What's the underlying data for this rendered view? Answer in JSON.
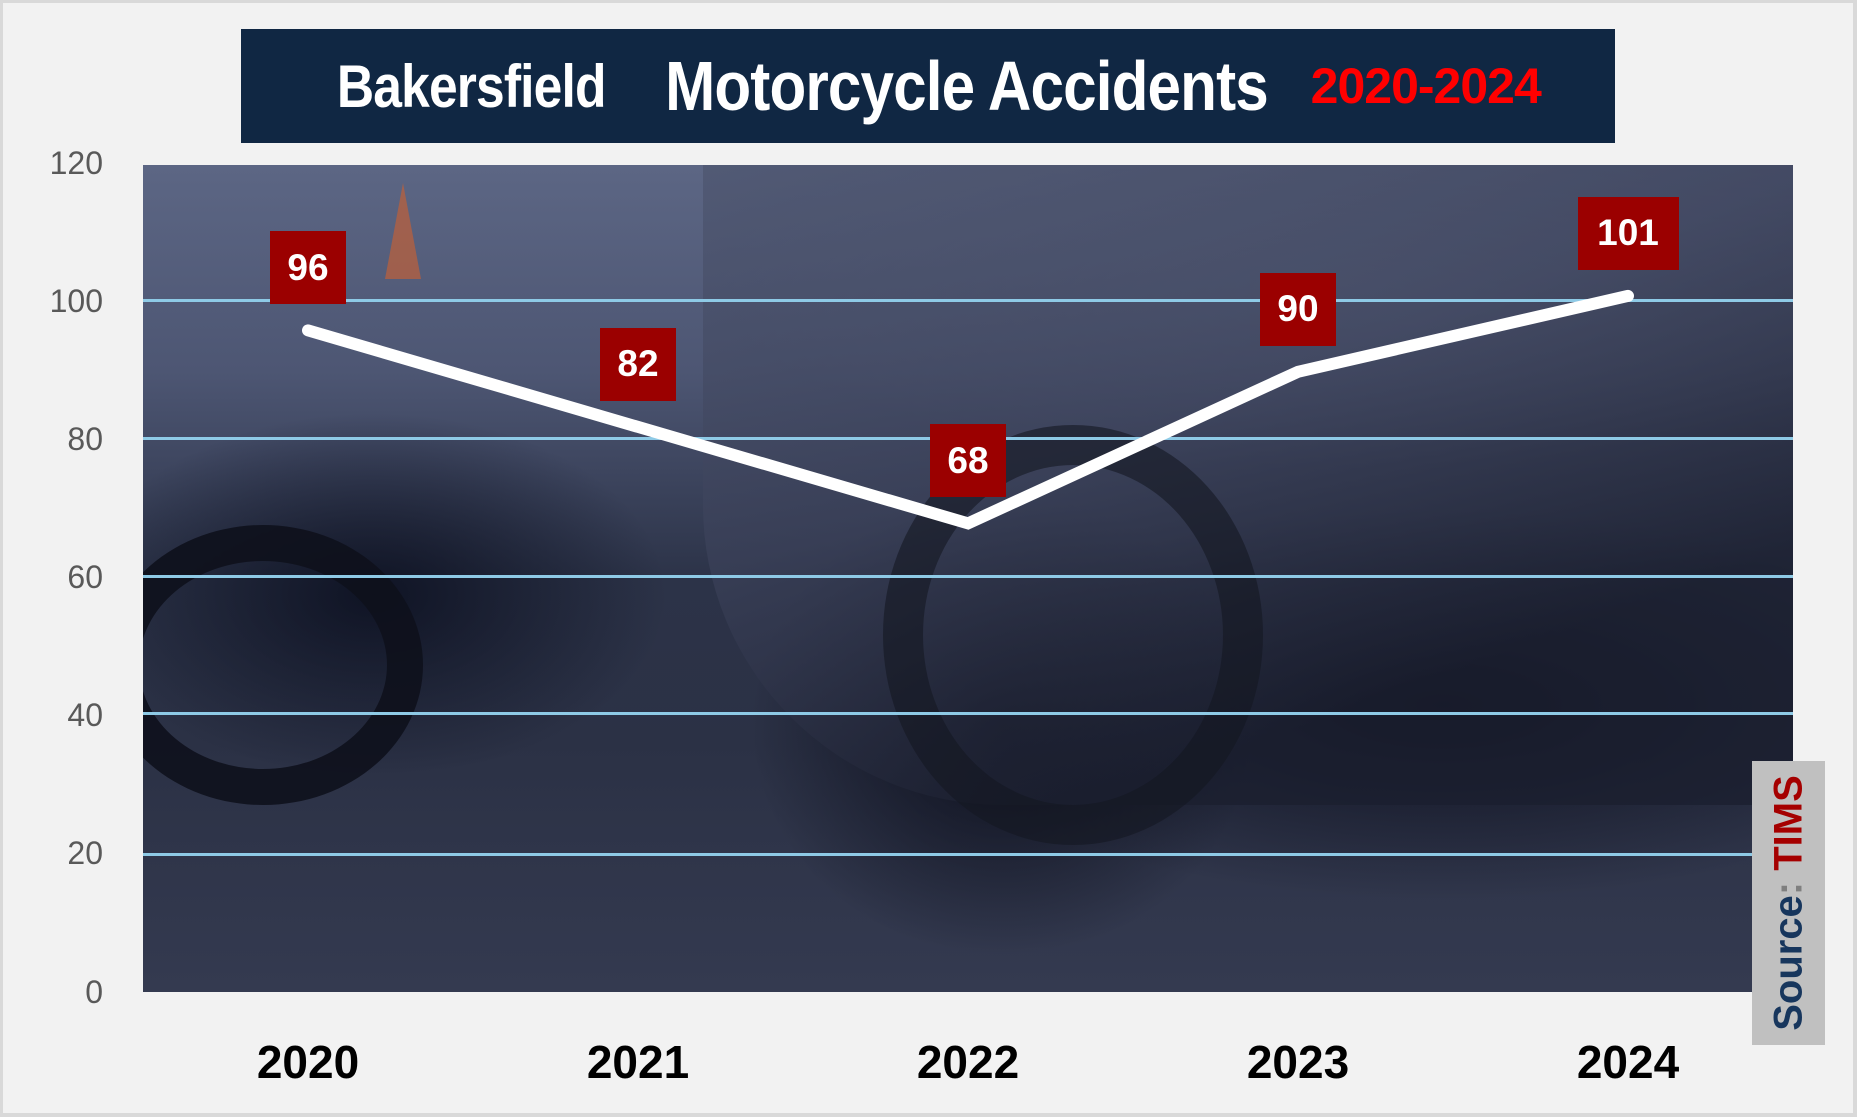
{
  "title": {
    "part1": "Bakersfield",
    "part2": "Motorcycle Accidents",
    "part3": "2020-2024"
  },
  "source": {
    "label": "Source",
    "colon": ": ",
    "name": "TIMS"
  },
  "colors": {
    "title_bg": "#102743",
    "title_text": "#ffffff",
    "title_years": "#ff0000",
    "label_bg": "#9b0000",
    "line": "#ffffff",
    "gridline": "#8ecae6",
    "source_bg": "#c0c0c0"
  },
  "y_axis": {
    "ticks": [
      "120",
      "100",
      "80",
      "60",
      "40",
      "20",
      "0"
    ]
  },
  "x_axis": {
    "ticks": [
      "2020",
      "2021",
      "2022",
      "2023",
      "2024"
    ]
  },
  "labels": [
    "96",
    "82",
    "68",
    "90",
    "101"
  ],
  "chart_data": {
    "type": "line",
    "title": "Bakersfield Motorcycle Accidents 2020-2024",
    "categories": [
      "2020",
      "2021",
      "2022",
      "2023",
      "2024"
    ],
    "values": [
      96,
      82,
      68,
      90,
      101
    ],
    "series": [
      {
        "name": "Motorcycle Accidents",
        "values": [
          96,
          82,
          68,
          90,
          101
        ]
      }
    ],
    "xlabel": "",
    "ylabel": "",
    "ylim": [
      0,
      120
    ],
    "yticks": [
      0,
      20,
      40,
      60,
      80,
      100,
      120
    ],
    "grid": true,
    "legend": "none",
    "data_labels": true,
    "annotations": [
      "Source: TIMS"
    ]
  }
}
